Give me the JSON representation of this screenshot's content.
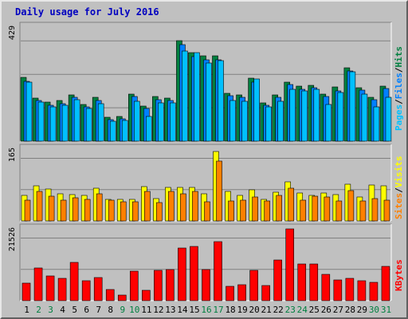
{
  "chart_data": {
    "type": "bar",
    "title": "Daily usage for July 2016",
    "days": [
      "1",
      "2",
      "3",
      "4",
      "5",
      "6",
      "7",
      "8",
      "9",
      "10",
      "11",
      "12",
      "13",
      "14",
      "15",
      "16",
      "17",
      "18",
      "19",
      "20",
      "21",
      "22",
      "23",
      "24",
      "25",
      "26",
      "27",
      "28",
      "29",
      "30",
      "31"
    ],
    "weekend_days": [
      "2",
      "3",
      "9",
      "10",
      "16",
      "17",
      "23",
      "24",
      "30",
      "31"
    ],
    "colors": {
      "hits": "#008040",
      "files": "#0080ff",
      "pages": "#00c0ff",
      "visits": "#ffff00",
      "sites": "#ff8000",
      "kbytes": "#ff0000",
      "weekday_label": "#000000",
      "weekend_label": "#008040",
      "panel_bg": "#c0c0c0",
      "grid": "#808080"
    },
    "panels": [
      {
        "axis_label_parts": [
          "Pages",
          "Files",
          "Hits"
        ],
        "max": 429,
        "max_label": "429",
        "series": [
          {
            "name": "Hits",
            "values": [
              239,
              163,
              146,
              152,
              174,
              138,
              165,
              90,
              93,
              177,
              133,
              167,
              163,
              377,
              333,
              320,
              320,
              180,
              175,
              238,
              144,
              174,
              223,
              206,
              210,
              177,
              203,
              277,
              202,
              165,
              208
            ]
          },
          {
            "name": "Files",
            "values": [
              224,
              153,
              136,
              142,
              164,
              129,
              154,
              81,
              84,
              167,
              124,
              157,
              153,
              362,
              318,
              306,
              306,
              170,
              166,
              223,
              134,
              164,
              213,
              196,
              200,
              167,
              190,
              264,
              193,
              155,
              198
            ]
          },
          {
            "name": "Pages",
            "values": [
              223,
              148,
              130,
              134,
              155,
              122,
              141,
              75,
              79,
              150,
              93,
              145,
              143,
              338,
              334,
              295,
              303,
              153,
              149,
              233,
              129,
              150,
              196,
              188,
              195,
              137,
              183,
              261,
              178,
              128,
              166
            ]
          }
        ]
      },
      {
        "axis_label_parts": [
          "Sites",
          "Visits"
        ],
        "max": 165,
        "max_label": "165",
        "series": [
          {
            "name": "Visits",
            "values": [
              58,
              81,
              74,
              63,
              60,
              59,
              75,
              50,
              49,
              49,
              78,
              52,
              77,
              77,
              77,
              63,
              160,
              67,
              59,
              71,
              50,
              66,
              90,
              64,
              59,
              64,
              61,
              84,
              55,
              83,
              80
            ]
          },
          {
            "name": "Sites",
            "values": [
              47,
              67,
              56,
              47,
              53,
              50,
              63,
              47,
              44,
              44,
              67,
              43,
              67,
              63,
              67,
              44,
              137,
              45,
              47,
              55,
              45,
              59,
              75,
              47,
              57,
              55,
              45,
              70,
              45,
              52,
              47
            ]
          }
        ]
      },
      {
        "axis_label_parts": [
          "KBytes"
        ],
        "max": 21526,
        "max_label": "21526",
        "series": [
          {
            "name": "KBytes",
            "values": [
              5300,
              9800,
              7300,
              6700,
              11600,
              5900,
              6900,
              3400,
              1700,
              8900,
              3200,
              9000,
              9400,
              15900,
              16200,
              9300,
              17800,
              4300,
              4700,
              9200,
              4500,
              12200,
              21526,
              11100,
              10900,
              7900,
              6300,
              6600,
              5900,
              5400,
              10300
            ]
          }
        ]
      }
    ]
  }
}
